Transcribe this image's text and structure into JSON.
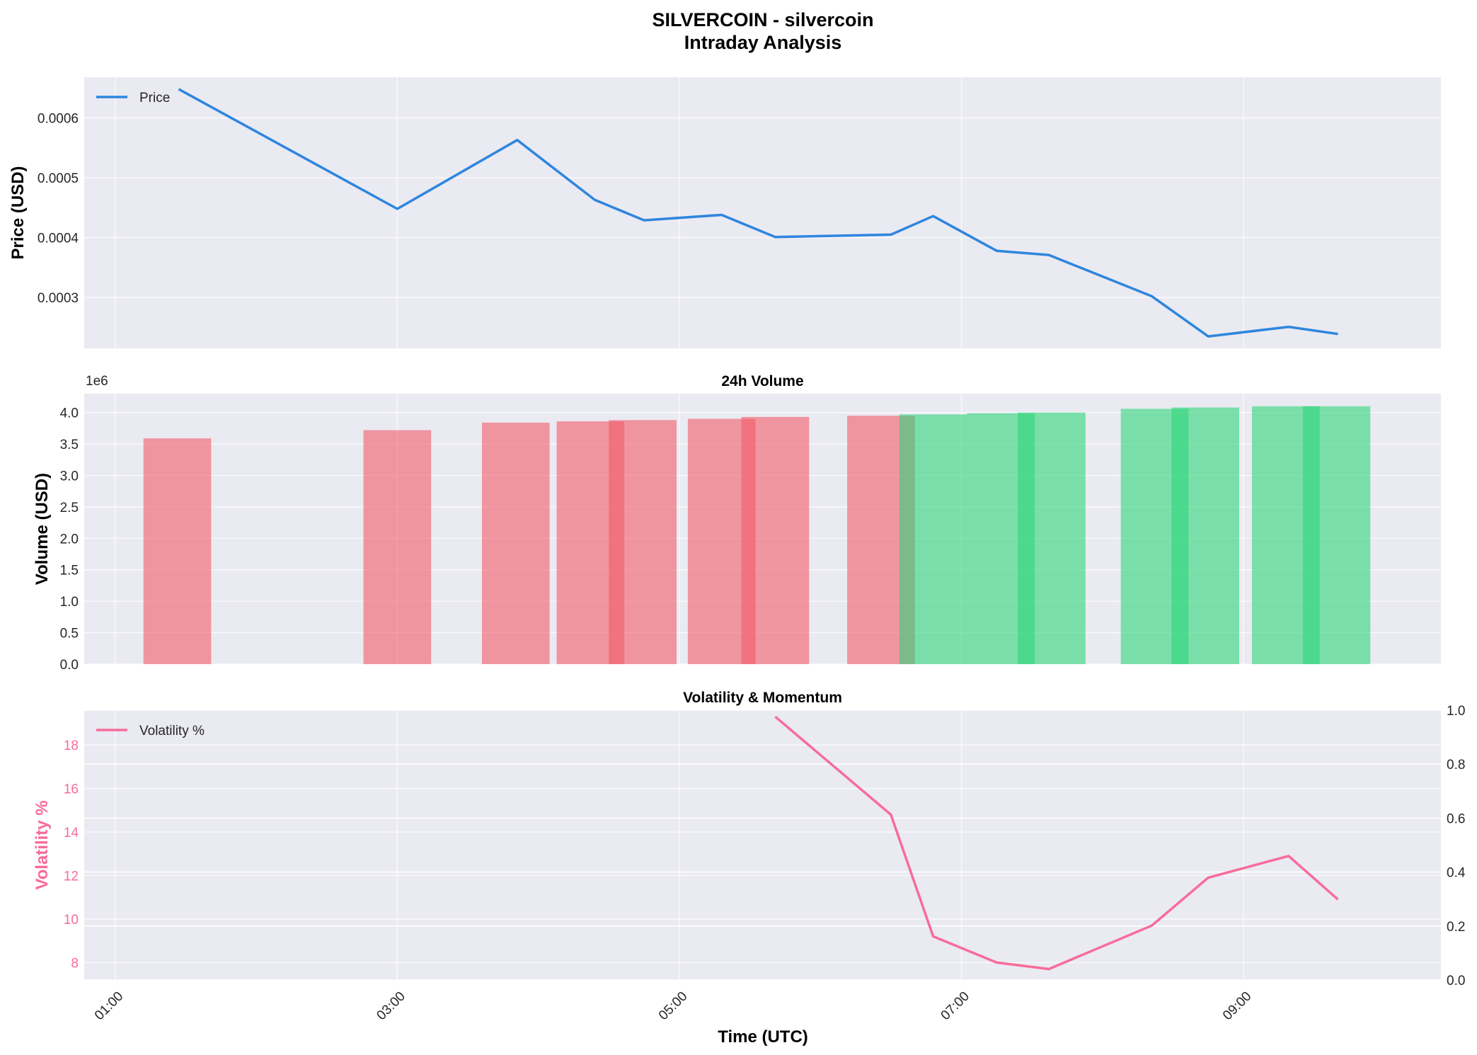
{
  "colors": {
    "price": "#2e86de",
    "bear": "#f25c69",
    "bull": "#2ed67a",
    "volatility": "#f76c9a",
    "axes_bg": "#eaeaf2",
    "grid": "#ffffff"
  },
  "figure": {
    "title_line1": "SILVERCOIN - silvercoin",
    "title_line2": "Intraday Analysis",
    "xlabel": "Time (UTC)",
    "xticks": [
      "01:00",
      "03:00",
      "05:00",
      "07:00",
      "09:00"
    ],
    "xtick_hours": [
      1,
      3,
      5,
      7,
      9
    ],
    "xlim_hours": [
      0.78,
      10.4
    ]
  },
  "chart_data": [
    {
      "type": "line",
      "title": "",
      "ylabel": "Price (USD)",
      "legend": [
        "Price"
      ],
      "legend_position": "top-left",
      "grid": true,
      "ylim": [
        0.000215,
        0.000668
      ],
      "yticks": [
        "0.0003",
        "0.0004",
        "0.0005",
        "0.0006"
      ],
      "ytick_values": [
        0.0003,
        0.0004,
        0.0005,
        0.0006
      ],
      "series": [
        {
          "name": "Price",
          "x_hours": [
            1.45,
            3.0,
            3.85,
            4.4,
            4.75,
            5.3,
            5.68,
            6.5,
            6.8,
            7.25,
            7.62,
            8.35,
            8.75,
            9.32,
            9.67
          ],
          "values": [
            0.000648,
            0.000448,
            0.000563,
            0.000463,
            0.000429,
            0.000438,
            0.000401,
            0.000405,
            0.000436,
            0.000378,
            0.000371,
            0.000302,
            0.000235,
            0.000251,
            0.000239
          ]
        }
      ]
    },
    {
      "type": "bar",
      "title": "24h Volume",
      "ylabel": "Volume (USD)",
      "offset_label": "1e6",
      "grid": true,
      "ylim": [
        0,
        4.3
      ],
      "yticks": [
        "0.0",
        "0.5",
        "1.0",
        "1.5",
        "2.0",
        "2.5",
        "3.0",
        "3.5",
        "4.0"
      ],
      "ytick_values": [
        0,
        0.5,
        1.0,
        1.5,
        2.0,
        2.5,
        3.0,
        3.5,
        4.0
      ],
      "bars": [
        {
          "x_start": 1.2,
          "x_end": 1.68,
          "value": 3.59,
          "direction": "down"
        },
        {
          "x_start": 2.76,
          "x_end": 3.24,
          "value": 3.72,
          "direction": "down"
        },
        {
          "x_start": 3.6,
          "x_end": 4.08,
          "value": 3.84,
          "direction": "down"
        },
        {
          "x_start": 4.13,
          "x_end": 4.61,
          "value": 3.86,
          "direction": "down"
        },
        {
          "x_start": 4.5,
          "x_end": 4.98,
          "value": 3.88,
          "direction": "down"
        },
        {
          "x_start": 5.06,
          "x_end": 5.54,
          "value": 3.9,
          "direction": "down"
        },
        {
          "x_start": 5.44,
          "x_end": 5.92,
          "value": 3.93,
          "direction": "down"
        },
        {
          "x_start": 6.19,
          "x_end": 6.67,
          "value": 3.95,
          "direction": "down"
        },
        {
          "x_start": 6.56,
          "x_end": 7.04,
          "value": 3.97,
          "direction": "up"
        },
        {
          "x_start": 7.04,
          "x_end": 7.52,
          "value": 3.99,
          "direction": "up"
        },
        {
          "x_start": 7.4,
          "x_end": 7.88,
          "value": 4.0,
          "direction": "up"
        },
        {
          "x_start": 8.13,
          "x_end": 8.61,
          "value": 4.06,
          "direction": "up"
        },
        {
          "x_start": 8.49,
          "x_end": 8.97,
          "value": 4.08,
          "direction": "up"
        },
        {
          "x_start": 9.06,
          "x_end": 9.54,
          "value": 4.1,
          "direction": "up"
        },
        {
          "x_start": 9.42,
          "x_end": 9.9,
          "value": 4.1,
          "direction": "up"
        }
      ]
    },
    {
      "type": "line",
      "title": "Volatility & Momentum",
      "ylabel": "Volatility %",
      "legend": [
        "Volatility %"
      ],
      "legend_position": "top-left",
      "grid": true,
      "ylim": [
        7.2,
        19.6
      ],
      "yticks": [
        "8",
        "10",
        "12",
        "14",
        "16",
        "18"
      ],
      "ytick_values": [
        8,
        10,
        12,
        14,
        16,
        18
      ],
      "y2lim": [
        0,
        1.0
      ],
      "y2ticks": [
        "0.0",
        "0.2",
        "0.4",
        "0.6",
        "0.8",
        "1.0"
      ],
      "y2tick_values": [
        0,
        0.2,
        0.4,
        0.6,
        0.8,
        1.0
      ],
      "series": [
        {
          "name": "Volatility %",
          "x_hours": [
            5.68,
            6.5,
            6.8,
            7.25,
            7.62,
            8.35,
            8.75,
            9.32,
            9.67
          ],
          "values": [
            19.3,
            14.8,
            9.2,
            8.0,
            7.7,
            9.7,
            11.9,
            12.9,
            10.9
          ]
        }
      ]
    }
  ]
}
